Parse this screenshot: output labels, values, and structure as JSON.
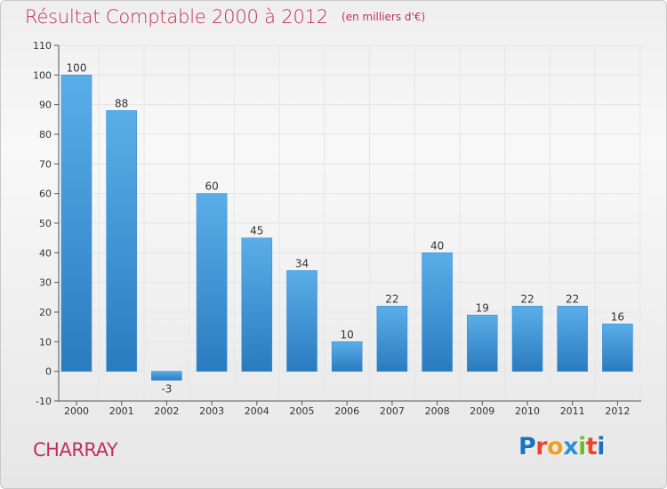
{
  "header": {
    "title": "Résultat Comptable 2000 à 2012",
    "unit": "(en milliers d'€)"
  },
  "footer": {
    "commune": "CHARRAY",
    "brand": "Proxiti",
    "brand_colors": [
      "#1a73c2",
      "#e8452c",
      "#f0a020",
      "#2c8fd6",
      "#6cbf2a",
      "#e8452c",
      "#1a73c2"
    ]
  },
  "colors": {
    "title": "#c0305a",
    "bar_light": "#5aaee8",
    "bar_dark": "#2a7bbf",
    "grid": "#e5e5e5"
  },
  "chart_data": {
    "type": "bar",
    "title": "Résultat Comptable 2000 à 2012",
    "xlabel": "",
    "ylabel": "",
    "categories": [
      "2000",
      "2001",
      "2002",
      "2003",
      "2004",
      "2005",
      "2006",
      "2007",
      "2008",
      "2009",
      "2010",
      "2011",
      "2012"
    ],
    "values": [
      100,
      88,
      -3,
      60,
      45,
      34,
      10,
      22,
      40,
      19,
      22,
      22,
      16
    ],
    "ylim": [
      -10,
      110
    ],
    "yticks": [
      -10,
      0,
      10,
      20,
      30,
      40,
      50,
      60,
      70,
      80,
      90,
      100,
      110
    ],
    "grid": true
  }
}
